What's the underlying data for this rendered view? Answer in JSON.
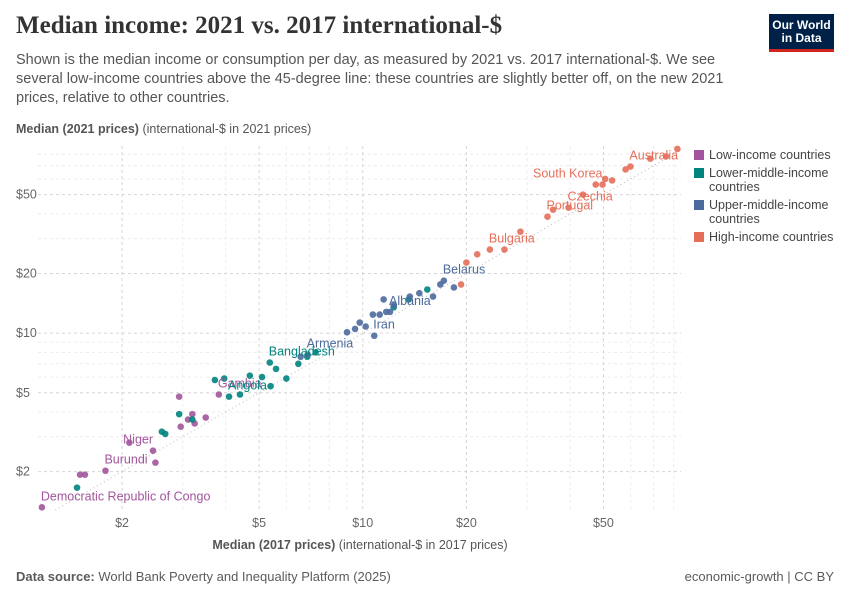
{
  "header": {
    "title": "Median income: 2021 vs. 2017 international-$",
    "subtitle": "Shown is the median income or consumption per day, as measured by 2021 vs. 2017 international-$. We see several low-income countries above the 45-degree line: these countries are slightly better off, on the new 2021 prices, relative to other countries.",
    "logo": [
      "Our World",
      "in Data"
    ]
  },
  "chart_data": {
    "type": "scatter",
    "y_label": "Median (2021 prices)",
    "y_unit": "(international-$ in 2021 prices)",
    "x_label": "Median (2017 prices)",
    "x_unit": "(international-$ in 2017 prices)",
    "xlog": true,
    "ylog": true,
    "grid": true,
    "legend": "right",
    "xlim": [
      1.14,
      84
    ],
    "ylim": [
      1.28,
      88
    ],
    "xticks": [
      {
        "value": 2,
        "label": "$2"
      },
      {
        "value": 5,
        "label": "$5"
      },
      {
        "value": 10,
        "label": "$10"
      },
      {
        "value": 20,
        "label": "$20"
      },
      {
        "value": 50,
        "label": "$50"
      }
    ],
    "yticks": [
      {
        "value": 2,
        "label": "$2"
      },
      {
        "value": 5,
        "label": "$5"
      },
      {
        "value": 10,
        "label": "$10"
      },
      {
        "value": 20,
        "label": "$20"
      },
      {
        "value": 50,
        "label": "$50"
      }
    ],
    "x_minor_grid": [
      3,
      4,
      6,
      7,
      8,
      9,
      30,
      40,
      60,
      70,
      80
    ],
    "y_minor_grid": [
      3,
      4,
      6,
      7,
      8,
      9,
      30,
      40,
      60,
      70,
      80
    ],
    "series": [
      {
        "name": "Low-income countries",
        "color": "#a2559c",
        "x": [
          1.17,
          1.51,
          1.56,
          1.79,
          2.1,
          2.46,
          2.5,
          2.93,
          2.96,
          3.11,
          3.2,
          3.25,
          3.5,
          3.82
        ],
        "y": [
          1.32,
          1.93,
          1.93,
          2.02,
          2.8,
          2.55,
          2.22,
          4.78,
          3.37,
          3.66,
          3.9,
          3.5,
          3.75,
          4.9
        ],
        "labels": [
          "Democratic Republic of Congo",
          null,
          null,
          "Burundi",
          null,
          "Niger",
          null,
          null,
          null,
          null,
          null,
          null,
          null,
          "Gambia"
        ]
      },
      {
        "name": "Lower-middle-income countries",
        "color": "#00847e",
        "x": [
          1.48,
          2.61,
          2.67,
          2.93,
          3.2,
          3.72,
          3.96,
          4.09,
          4.4,
          4.7,
          5.1,
          5.37,
          5.4,
          5.6,
          6.0,
          6.5,
          6.9,
          7.3,
          12.3,
          13.6,
          15.4
        ],
        "y": [
          1.66,
          3.18,
          3.1,
          3.9,
          3.66,
          5.8,
          5.9,
          4.78,
          4.9,
          6.1,
          6.0,
          7.1,
          5.4,
          6.6,
          5.9,
          7.0,
          7.6,
          8.0,
          13.5,
          14.8,
          16.6
        ],
        "labels": [
          null,
          null,
          null,
          null,
          null,
          null,
          null,
          "Angola",
          null,
          null,
          null,
          "Bangladesh",
          null,
          null,
          null,
          null,
          null,
          null,
          null,
          null,
          null
        ]
      },
      {
        "name": "Upper-middle-income countries",
        "color": "#4c6a9c",
        "x": [
          6.6,
          6.92,
          9.0,
          9.5,
          9.8,
          10.2,
          10.7,
          10.8,
          11.2,
          11.5,
          11.7,
          12.0,
          12.3,
          13.7,
          14.6,
          16.0,
          16.8,
          17.2,
          18.4
        ],
        "y": [
          7.6,
          7.8,
          10.1,
          10.5,
          11.3,
          10.8,
          12.4,
          9.7,
          12.4,
          14.8,
          12.8,
          12.8,
          13.8,
          15.3,
          15.9,
          15.3,
          17.6,
          18.4,
          17.0
        ],
        "labels": [
          null,
          "Armenia",
          null,
          null,
          null,
          null,
          null,
          "Iran",
          null,
          null,
          null,
          "Albania",
          null,
          null,
          null,
          null,
          null,
          "Belarus",
          null
        ]
      },
      {
        "name": "High-income countries",
        "color": "#e56e5a",
        "x": [
          19.3,
          20,
          21.5,
          23.4,
          25.8,
          28.7,
          34.4,
          35.7,
          39.6,
          43.6,
          47.5,
          49.7,
          50.6,
          53,
          58,
          59.9,
          68.4,
          76,
          82
        ],
        "y": [
          17.6,
          22.7,
          25,
          26.4,
          26.4,
          32.5,
          38.7,
          42,
          43,
          50,
          56.2,
          56.2,
          60,
          59,
          67,
          69.3,
          76,
          78,
          85
        ],
        "labels": [
          null,
          null,
          null,
          "Bulgaria",
          null,
          null,
          "Portugal",
          null,
          "Czechia",
          null,
          null,
          "South Korea",
          null,
          null,
          null,
          "Australia",
          null,
          null,
          null
        ]
      }
    ]
  },
  "footer": {
    "source_label": "Data source:",
    "source": "World Bank Poverty and Inequality Platform (2025)",
    "license": "economic-growth | CC BY"
  }
}
